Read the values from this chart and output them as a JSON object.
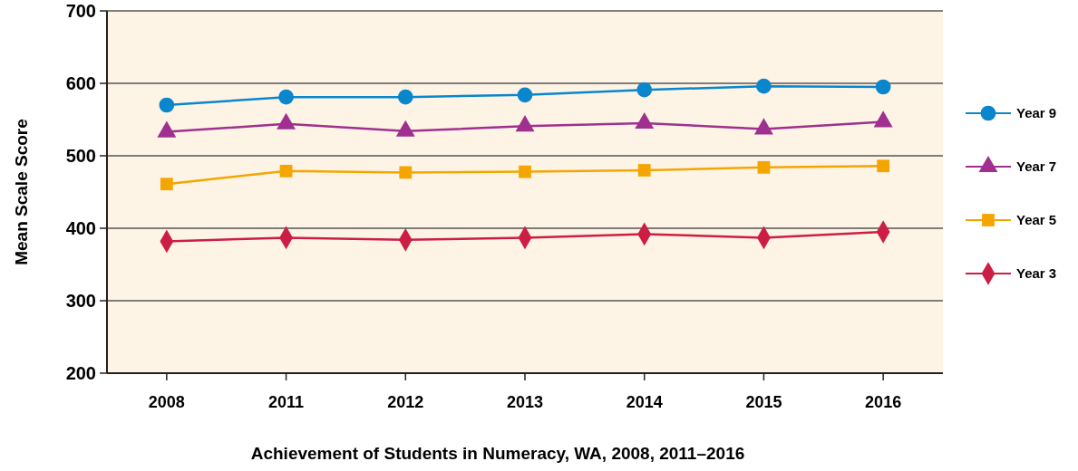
{
  "chart_data": {
    "type": "line",
    "xlabel": "Achievement of Students in Numeracy, WA, 2008, 2011–2016",
    "ylabel": "Mean Scale Score",
    "categories": [
      "2008",
      "2011",
      "2012",
      "2013",
      "2014",
      "2015",
      "2016"
    ],
    "ylim": [
      200,
      700
    ],
    "yticks": [
      200,
      300,
      400,
      500,
      600,
      700
    ],
    "grid": "y",
    "legend": "right",
    "series": [
      {
        "name": "Year 9",
        "color": "#0a86cc",
        "marker": "circle",
        "values": [
          570,
          581,
          581,
          584,
          591,
          596,
          595
        ]
      },
      {
        "name": "Year 7",
        "color": "#a0308f",
        "marker": "triangle",
        "values": [
          533,
          544,
          534,
          541,
          545,
          537,
          547
        ]
      },
      {
        "name": "Year 5",
        "color": "#f5a500",
        "marker": "square",
        "values": [
          461,
          479,
          477,
          478,
          480,
          484,
          486
        ]
      },
      {
        "name": "Year 3",
        "color": "#cc1e44",
        "marker": "diamond",
        "values": [
          382,
          387,
          384,
          387,
          392,
          387,
          395
        ]
      }
    ]
  }
}
